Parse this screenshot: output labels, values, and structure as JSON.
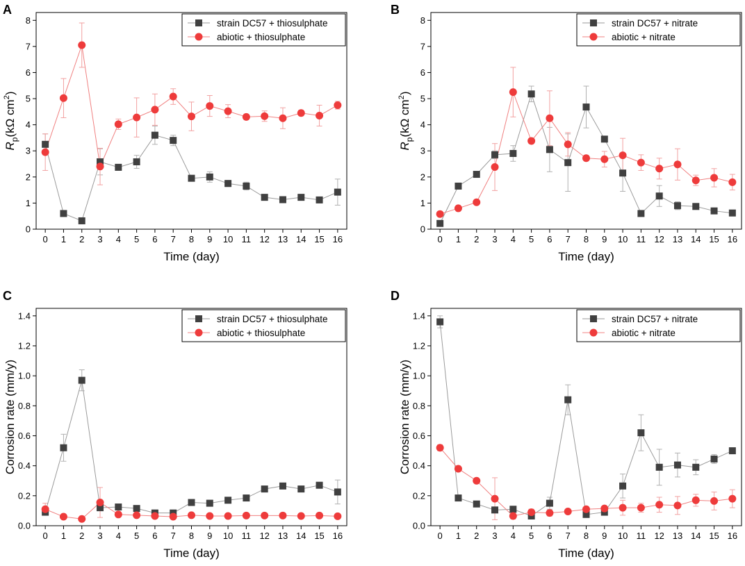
{
  "figure": {
    "panels": [
      "A",
      "B",
      "C",
      "D"
    ]
  },
  "colors": {
    "strain": "#404040",
    "strain_line": "#9a9a9a",
    "abiotic": "#ee3b3b",
    "abiotic_line": "#f08080",
    "error": "#b0b0b0",
    "error_abiotic": "#f2a0a0"
  },
  "chart_data": [
    {
      "panel": "A",
      "type": "line",
      "ylabel_main": "R",
      "ylabel_sub": "p",
      "ylabel_rest": "(kΩ cm",
      "ylabel_sup": "2",
      "ylabel_close": ")",
      "xlabel": "Time (day)",
      "xlim": [
        -0.5,
        16.5
      ],
      "ylim": [
        0,
        8.3
      ],
      "yticks": [
        "0",
        "1",
        "2",
        "3",
        "4",
        "5",
        "6",
        "7",
        "8"
      ],
      "ytick_values": [
        0,
        1,
        2,
        3,
        4,
        5,
        6,
        7,
        8
      ],
      "x": [
        0,
        1,
        2,
        3,
        4,
        5,
        6,
        7,
        8,
        9,
        10,
        11,
        12,
        13,
        14,
        15,
        16
      ],
      "xticks": [
        "0",
        "1",
        "2",
        "3",
        "4",
        "5",
        "6",
        "7",
        "8",
        "9",
        "10",
        "11",
        "12",
        "13",
        "14",
        "15",
        "16"
      ],
      "series": [
        {
          "name": "strain DC57 + thiosulphate",
          "marker": "square",
          "values": [
            3.25,
            0.6,
            0.32,
            2.58,
            2.37,
            2.58,
            3.6,
            3.4,
            1.95,
            2.0,
            1.75,
            1.65,
            1.22,
            1.13,
            1.22,
            1.12,
            1.42
          ],
          "errors": [
            0.4,
            0.05,
            0.05,
            0.5,
            0.1,
            0.25,
            0.35,
            0.2,
            0.08,
            0.2,
            0.12,
            0.15,
            0.08,
            0.08,
            0.08,
            0.08,
            0.5
          ]
        },
        {
          "name": "abiotic + thiosulphate",
          "marker": "circle",
          "values": [
            2.95,
            5.02,
            7.05,
            2.4,
            4.02,
            4.28,
            4.58,
            5.08,
            4.32,
            4.72,
            4.52,
            4.3,
            4.33,
            4.25,
            4.45,
            4.35,
            4.75
          ]
        },
        {
          "name": "abiotic + thiosulphate errors",
          "marker": "none",
          "values": [
            0.7,
            0.75,
            0.85,
            0.7,
            0.2,
            0.75,
            0.6,
            0.3,
            0.55,
            0.4,
            0.25,
            0.1,
            0.2,
            0.4,
            0.1,
            0.4,
            0.15
          ]
        }
      ],
      "legend": [
        "strain DC57 + thiosulphate",
        "abiotic + thiosulphate"
      ]
    },
    {
      "panel": "B",
      "type": "line",
      "ylabel_main": "R",
      "ylabel_sub": "p",
      "ylabel_rest": "(kΩ cm",
      "ylabel_sup": "2",
      "ylabel_close": ")",
      "xlabel": "Time (day)",
      "xlim": [
        -0.5,
        16.5
      ],
      "ylim": [
        0,
        8.3
      ],
      "yticks": [
        "0",
        "1",
        "2",
        "3",
        "4",
        "5",
        "6",
        "7",
        "8"
      ],
      "ytick_values": [
        0,
        1,
        2,
        3,
        4,
        5,
        6,
        7,
        8
      ],
      "x": [
        0,
        1,
        2,
        3,
        4,
        5,
        6,
        7,
        8,
        9,
        10,
        11,
        12,
        13,
        14,
        15,
        16
      ],
      "xticks": [
        "0",
        "1",
        "2",
        "3",
        "4",
        "5",
        "6",
        "7",
        "8",
        "9",
        "10",
        "11",
        "12",
        "13",
        "14",
        "15",
        "16"
      ],
      "series": [
        {
          "name": "strain DC57 + nitrate",
          "marker": "square",
          "values": [
            0.22,
            1.65,
            2.1,
            2.85,
            2.9,
            5.18,
            3.05,
            2.55,
            4.68,
            3.45,
            2.15,
            0.6,
            1.27,
            0.9,
            0.87,
            0.7,
            0.62
          ],
          "errors": [
            0.1,
            0.05,
            0.1,
            0.15,
            0.3,
            0.3,
            0.85,
            1.1,
            0.8,
            0.1,
            0.7,
            0.1,
            0.4,
            0.15,
            0.05,
            0.05,
            0.05
          ]
        },
        {
          "name": "abiotic + nitrate",
          "marker": "circle",
          "values": [
            0.58,
            0.8,
            1.03,
            2.38,
            5.25,
            3.38,
            4.25,
            3.25,
            2.72,
            2.68,
            2.83,
            2.55,
            2.32,
            2.48,
            1.87,
            1.97,
            1.8
          ]
        },
        {
          "name": "abiotic + nitrate errors",
          "marker": "none",
          "values": [
            0.05,
            0.05,
            0.05,
            0.9,
            0.95,
            0.1,
            1.05,
            0.45,
            0.1,
            0.3,
            0.65,
            0.3,
            0.4,
            0.6,
            0.2,
            0.35,
            0.3
          ]
        }
      ],
      "legend": [
        "strain DC57 + nitrate",
        "abiotic + nitrate"
      ]
    },
    {
      "panel": "C",
      "type": "line",
      "ylabel": "Corrosion rate (mm/y)",
      "xlabel": "Time (day)",
      "xlim": [
        -0.5,
        16.5
      ],
      "ylim": [
        0,
        1.45
      ],
      "yticks": [
        "0.0",
        "0.2",
        "0.4",
        "0.6",
        "0.8",
        "1.0",
        "1.2",
        "1.4"
      ],
      "ytick_values": [
        0,
        0.2,
        0.4,
        0.6,
        0.8,
        1.0,
        1.2,
        1.4
      ],
      "x": [
        0,
        1,
        2,
        3,
        4,
        5,
        6,
        7,
        8,
        9,
        10,
        11,
        12,
        13,
        14,
        15,
        16
      ],
      "xticks": [
        "0",
        "1",
        "2",
        "3",
        "4",
        "5",
        "6",
        "7",
        "8",
        "9",
        "10",
        "11",
        "12",
        "13",
        "14",
        "15",
        "16"
      ],
      "series": [
        {
          "name": "strain DC57 + thiosulphate",
          "marker": "square",
          "values": [
            0.09,
            0.52,
            0.97,
            0.12,
            0.125,
            0.115,
            0.085,
            0.085,
            0.155,
            0.15,
            0.17,
            0.185,
            0.245,
            0.265,
            0.245,
            0.27,
            0.225
          ],
          "errors": [
            0.02,
            0.09,
            0.07,
            0.02,
            0.01,
            0.01,
            0.01,
            0.01,
            0.01,
            0.02,
            0.02,
            0.02,
            0.01,
            0.02,
            0.01,
            0.02,
            0.08
          ]
        },
        {
          "name": "abiotic + thiosulphate",
          "marker": "circle",
          "values": [
            0.11,
            0.06,
            0.045,
            0.155,
            0.075,
            0.07,
            0.065,
            0.06,
            0.07,
            0.065,
            0.065,
            0.068,
            0.068,
            0.068,
            0.065,
            0.068,
            0.063
          ]
        },
        {
          "name": "abiotic + thiosulphate errors",
          "marker": "none",
          "values": [
            0.04,
            0.005,
            0.005,
            0.1,
            0.01,
            0.01,
            0.01,
            0.005,
            0.01,
            0.005,
            0.005,
            0.005,
            0.005,
            0.005,
            0.005,
            0.005,
            0.005
          ]
        }
      ],
      "legend": [
        "strain DC57 + thiosulphate",
        "abiotic + thiosulphate"
      ]
    },
    {
      "panel": "D",
      "type": "line",
      "ylabel": "Corrosion rate (mm/y)",
      "xlabel": "Time (day)",
      "xlim": [
        -0.5,
        16.5
      ],
      "ylim": [
        0,
        1.45
      ],
      "yticks": [
        "0.0",
        "0.2",
        "0.4",
        "0.6",
        "0.8",
        "1.0",
        "1.2",
        "1.4"
      ],
      "ytick_values": [
        0,
        0.2,
        0.4,
        0.6,
        0.8,
        1.0,
        1.2,
        1.4
      ],
      "x": [
        0,
        1,
        2,
        3,
        4,
        5,
        6,
        7,
        8,
        9,
        10,
        11,
        12,
        13,
        14,
        15,
        16
      ],
      "xticks": [
        "0",
        "1",
        "2",
        "3",
        "4",
        "5",
        "6",
        "7",
        "8",
        "9",
        "10",
        "11",
        "12",
        "13",
        "14",
        "15",
        "16"
      ],
      "series": [
        {
          "name": "strain DC57 + nitrate",
          "marker": "square",
          "values": [
            1.36,
            0.185,
            0.145,
            0.105,
            0.11,
            0.065,
            0.15,
            0.84,
            0.075,
            0.09,
            0.265,
            0.62,
            0.39,
            0.405,
            0.39,
            0.445,
            0.5
          ],
          "errors": [
            0.04,
            0.01,
            0.01,
            0.01,
            0.01,
            0.01,
            0.04,
            0.1,
            0.01,
            0.01,
            0.08,
            0.12,
            0.12,
            0.08,
            0.05,
            0.03,
            0.02
          ]
        },
        {
          "name": "abiotic + nitrate",
          "marker": "circle",
          "values": [
            0.52,
            0.38,
            0.3,
            0.18,
            0.065,
            0.09,
            0.085,
            0.095,
            0.11,
            0.115,
            0.12,
            0.12,
            0.14,
            0.135,
            0.17,
            0.165,
            0.18
          ]
        },
        {
          "name": "abiotic + nitrate errors",
          "marker": "none",
          "values": [
            0.02,
            0.01,
            0.01,
            0.14,
            0.02,
            0.02,
            0.02,
            0.01,
            0.01,
            0.01,
            0.05,
            0.03,
            0.05,
            0.06,
            0.04,
            0.06,
            0.06
          ]
        }
      ],
      "legend": [
        "strain DC57 + nitrate",
        "abiotic + nitrate"
      ]
    }
  ]
}
